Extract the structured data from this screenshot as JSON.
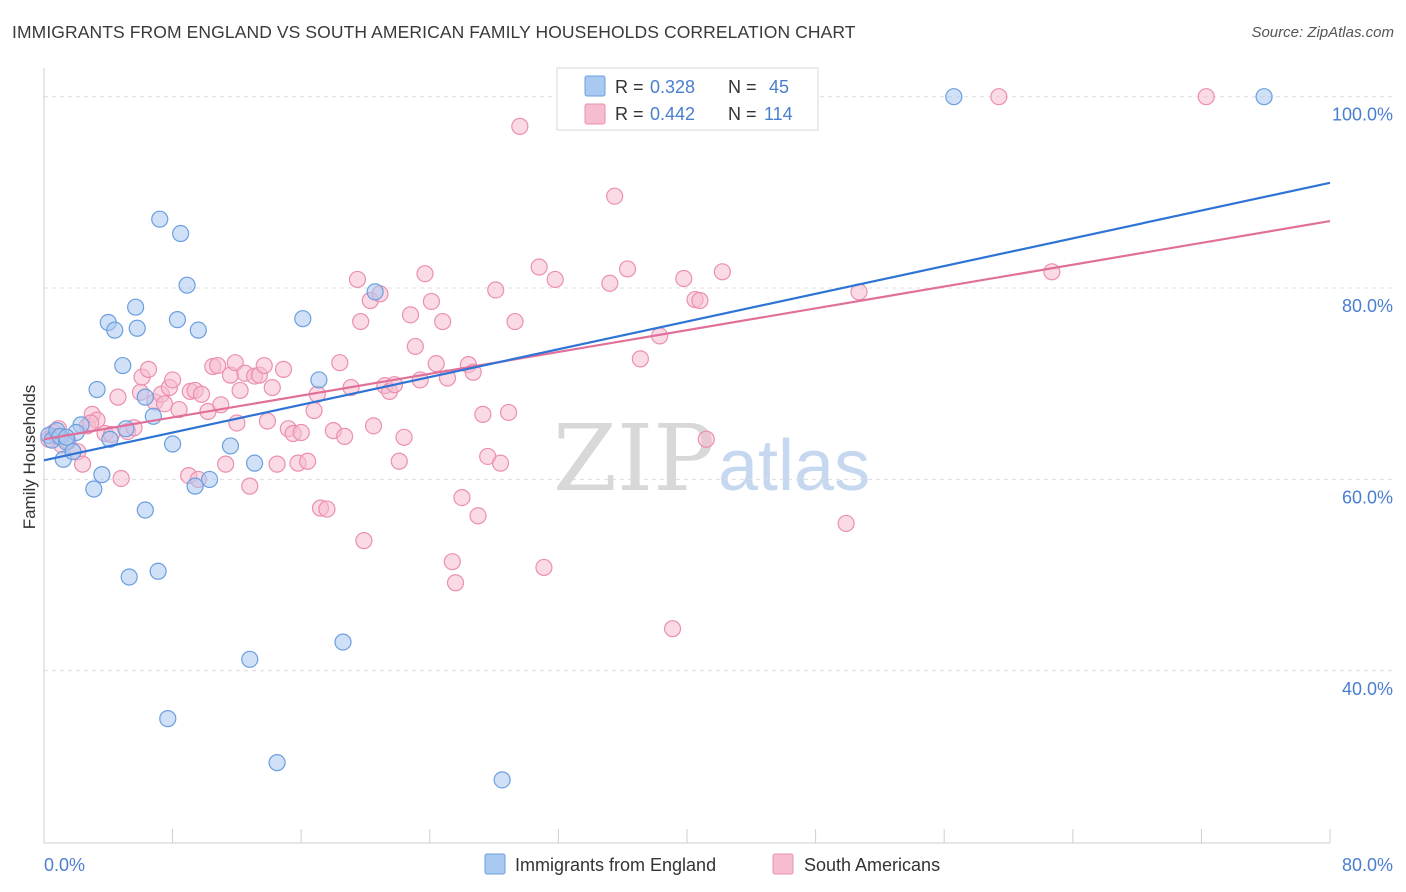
{
  "header": {
    "title": "IMMIGRANTS FROM ENGLAND VS SOUTH AMERICAN FAMILY HOUSEHOLDS CORRELATION CHART",
    "source": "Source: ZipAtlas.com"
  },
  "watermark": {
    "zip": "ZIP",
    "atlas": "atlas"
  },
  "colors": {
    "blue_fill": "#a9c9f1",
    "blue_stroke": "#6b9fe0",
    "blue_line": "#2f74d4",
    "pink_fill": "#f6bcd0",
    "pink_stroke": "#ec8fb0",
    "pink_line": "#e0709a",
    "value_text": "#4a7fcf"
  },
  "legend_box": {
    "rows": [
      {
        "r_label": "R =",
        "r_value": "0.328",
        "n_label": "N =",
        "n_value": "45"
      },
      {
        "r_label": "R =",
        "r_value": "0.442",
        "n_label": "N =",
        "n_value": "114"
      }
    ]
  },
  "chart_data": {
    "type": "scatter",
    "title": "IMMIGRANTS FROM ENGLAND VS SOUTH AMERICAN FAMILY HOUSEHOLDS CORRELATION CHART",
    "xlabel": "",
    "ylabel": "Family Households",
    "xlim": [
      0,
      80
    ],
    "ylim": [
      22,
      103
    ],
    "x_tick_labels": [
      {
        "value": 0,
        "label": "0.0%"
      },
      {
        "value": 80,
        "label": "80.0%"
      }
    ],
    "x_minor_ticks": [
      8,
      16,
      24,
      32,
      40,
      48,
      56,
      64,
      72,
      80
    ],
    "y_tick_labels": [
      {
        "value": 100,
        "label": "100.0%"
      },
      {
        "value": 80,
        "label": "80.0%"
      },
      {
        "value": 60,
        "label": "60.0%"
      },
      {
        "value": 40,
        "label": "40.0%"
      }
    ],
    "y_gridlines": [
      100,
      80,
      60,
      40
    ],
    "legend": [
      "Immigrants from England",
      "South Americans"
    ],
    "series": [
      {
        "name": "Immigrants from England",
        "color": "blue",
        "r": 0.328,
        "n": 45,
        "trend": {
          "x": [
            0,
            80
          ],
          "y": [
            62.0,
            91.0
          ]
        },
        "points": [
          [
            0.3,
            64.6
          ],
          [
            0.5,
            64.1
          ],
          [
            0.8,
            65.1
          ],
          [
            1.0,
            64.5
          ],
          [
            1.2,
            62.1
          ],
          [
            1.4,
            63.9
          ],
          [
            1.8,
            62.9
          ],
          [
            2.3,
            65.7
          ],
          [
            2.0,
            64.9
          ],
          [
            3.1,
            59.0
          ],
          [
            3.6,
            60.5
          ],
          [
            4.1,
            64.2
          ],
          [
            3.3,
            69.4
          ],
          [
            4.0,
            76.4
          ],
          [
            4.4,
            75.6
          ],
          [
            4.9,
            71.9
          ],
          [
            5.1,
            65.3
          ],
          [
            5.8,
            75.8
          ],
          [
            5.7,
            78.0
          ],
          [
            6.3,
            68.6
          ],
          [
            6.8,
            66.6
          ],
          [
            7.2,
            87.2
          ],
          [
            8.3,
            76.7
          ],
          [
            8.5,
            85.7
          ],
          [
            8.9,
            80.3
          ],
          [
            9.6,
            75.6
          ],
          [
            8.0,
            63.7
          ],
          [
            9.4,
            59.3
          ],
          [
            10.3,
            60.0
          ],
          [
            11.6,
            63.5
          ],
          [
            13.1,
            61.7
          ],
          [
            16.1,
            76.8
          ],
          [
            17.1,
            70.4
          ],
          [
            20.6,
            79.6
          ],
          [
            6.3,
            56.8
          ],
          [
            7.1,
            50.4
          ],
          [
            5.3,
            49.8
          ],
          [
            12.8,
            41.2
          ],
          [
            18.6,
            43.0
          ],
          [
            7.7,
            35.0
          ],
          [
            14.5,
            30.4
          ],
          [
            28.5,
            28.6
          ],
          [
            56.6,
            100.0
          ],
          [
            75.9,
            100.0
          ],
          [
            1.4,
            64.4
          ]
        ]
      },
      {
        "name": "South Americans",
        "color": "pink",
        "r": 0.442,
        "n": 114,
        "trend": {
          "x": [
            0,
            80
          ],
          "y": [
            64.2,
            87.0
          ]
        },
        "points": [
          [
            0.3,
            64.2
          ],
          [
            0.6,
            64.9
          ],
          [
            0.9,
            65.3
          ],
          [
            1.1,
            63.6
          ],
          [
            1.5,
            64.0
          ],
          [
            2.1,
            62.9
          ],
          [
            2.4,
            61.6
          ],
          [
            2.7,
            65.6
          ],
          [
            3.0,
            66.8
          ],
          [
            3.3,
            66.2
          ],
          [
            3.8,
            64.8
          ],
          [
            4.2,
            64.7
          ],
          [
            4.6,
            68.6
          ],
          [
            4.8,
            60.1
          ],
          [
            5.2,
            65.0
          ],
          [
            5.6,
            65.4
          ],
          [
            6.0,
            69.1
          ],
          [
            6.1,
            70.7
          ],
          [
            6.5,
            71.5
          ],
          [
            6.9,
            68.1
          ],
          [
            7.3,
            68.9
          ],
          [
            7.5,
            67.9
          ],
          [
            7.8,
            69.6
          ],
          [
            8.0,
            70.4
          ],
          [
            8.4,
            67.3
          ],
          [
            9.0,
            60.4
          ],
          [
            9.1,
            69.2
          ],
          [
            9.4,
            69.3
          ],
          [
            9.6,
            60.0
          ],
          [
            9.8,
            68.9
          ],
          [
            10.2,
            67.1
          ],
          [
            10.5,
            71.8
          ],
          [
            10.8,
            71.9
          ],
          [
            11.0,
            67.8
          ],
          [
            11.3,
            61.6
          ],
          [
            11.6,
            70.9
          ],
          [
            11.9,
            72.2
          ],
          [
            12.2,
            69.3
          ],
          [
            12.5,
            71.1
          ],
          [
            12.8,
            59.3
          ],
          [
            13.1,
            70.8
          ],
          [
            13.4,
            70.9
          ],
          [
            13.7,
            71.9
          ],
          [
            13.9,
            66.1
          ],
          [
            14.2,
            69.6
          ],
          [
            14.5,
            61.6
          ],
          [
            14.9,
            71.5
          ],
          [
            15.2,
            65.3
          ],
          [
            15.5,
            64.8
          ],
          [
            15.8,
            61.7
          ],
          [
            16.0,
            64.9
          ],
          [
            16.4,
            61.9
          ],
          [
            16.8,
            67.2
          ],
          [
            17.0,
            68.9
          ],
          [
            17.2,
            57.0
          ],
          [
            17.6,
            56.9
          ],
          [
            18.0,
            65.1
          ],
          [
            18.4,
            72.2
          ],
          [
            18.7,
            64.5
          ],
          [
            19.1,
            69.6
          ],
          [
            19.5,
            80.9
          ],
          [
            19.7,
            76.5
          ],
          [
            19.9,
            53.6
          ],
          [
            20.3,
            78.7
          ],
          [
            20.5,
            65.6
          ],
          [
            20.9,
            79.4
          ],
          [
            21.2,
            69.8
          ],
          [
            21.5,
            69.2
          ],
          [
            21.8,
            69.9
          ],
          [
            22.1,
            61.9
          ],
          [
            22.4,
            64.4
          ],
          [
            22.8,
            77.2
          ],
          [
            23.1,
            73.9
          ],
          [
            23.4,
            70.4
          ],
          [
            23.7,
            81.5
          ],
          [
            24.1,
            78.6
          ],
          [
            24.4,
            72.1
          ],
          [
            24.8,
            76.5
          ],
          [
            25.1,
            70.6
          ],
          [
            25.4,
            51.4
          ],
          [
            25.6,
            49.2
          ],
          [
            26.0,
            58.1
          ],
          [
            26.4,
            72.0
          ],
          [
            26.7,
            71.2
          ],
          [
            27.0,
            56.2
          ],
          [
            27.3,
            66.8
          ],
          [
            27.6,
            62.4
          ],
          [
            28.1,
            79.8
          ],
          [
            28.4,
            61.7
          ],
          [
            28.9,
            67.0
          ],
          [
            29.3,
            76.5
          ],
          [
            29.6,
            96.9
          ],
          [
            30.8,
            82.2
          ],
          [
            31.1,
            50.8
          ],
          [
            31.8,
            80.9
          ],
          [
            35.2,
            80.5
          ],
          [
            35.5,
            89.6
          ],
          [
            36.3,
            82.0
          ],
          [
            37.1,
            72.6
          ],
          [
            38.3,
            75.0
          ],
          [
            39.1,
            44.4
          ],
          [
            39.8,
            81.0
          ],
          [
            40.5,
            78.8
          ],
          [
            40.8,
            78.7
          ],
          [
            41.2,
            64.2
          ],
          [
            42.2,
            81.7
          ],
          [
            49.9,
            55.4
          ],
          [
            50.7,
            79.6
          ],
          [
            59.4,
            100.0
          ],
          [
            62.7,
            81.7
          ],
          [
            72.3,
            100.0
          ],
          [
            0.8,
            64.5
          ],
          [
            2.9,
            65.9
          ],
          [
            12.0,
            65.9
          ]
        ]
      }
    ]
  }
}
